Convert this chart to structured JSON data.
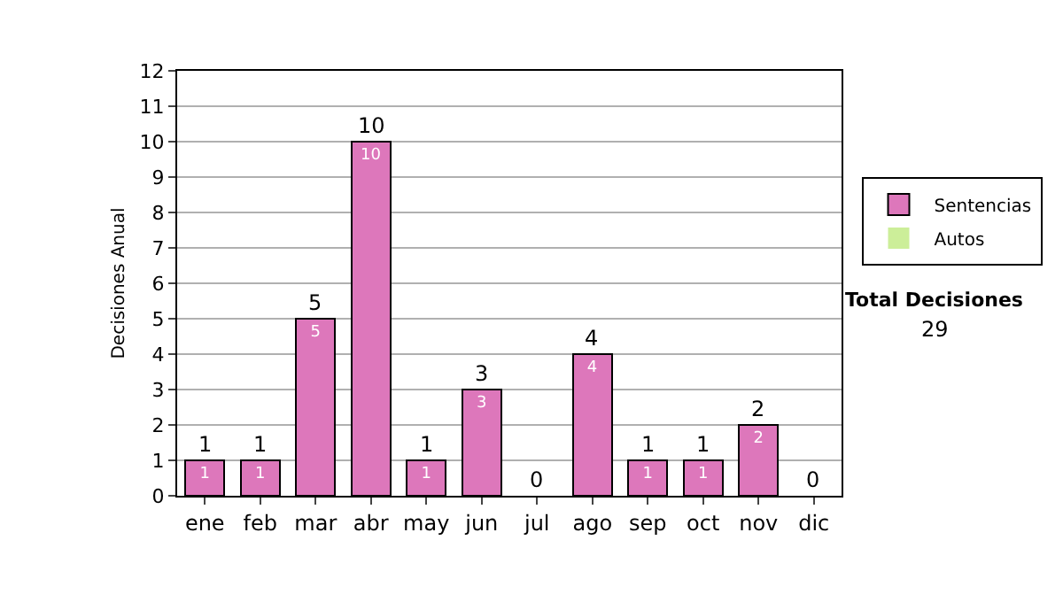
{
  "chart_data": {
    "type": "bar",
    "ylabel": "Decisiones Anual",
    "categories": [
      "ene",
      "feb",
      "mar",
      "abr",
      "may",
      "jun",
      "jul",
      "ago",
      "sep",
      "oct",
      "nov",
      "dic"
    ],
    "stacked": true,
    "series": [
      {
        "name": "Sentencias",
        "color": "#dd77bb",
        "values": [
          1,
          1,
          5,
          10,
          1,
          3,
          0,
          4,
          1,
          1,
          2,
          0
        ],
        "value_labels": [
          "1",
          "1",
          "5",
          "10",
          "1",
          "3",
          null,
          "4",
          "1",
          "1",
          "2",
          null
        ]
      },
      {
        "name": "Autos",
        "color": "#ccee99",
        "values": [
          0,
          0,
          0,
          0,
          0,
          0,
          0,
          0,
          0,
          0,
          0,
          0
        ]
      }
    ],
    "totals": [
      "1",
      "1",
      "5",
      "10",
      "1",
      "3",
      "0",
      "4",
      "1",
      "1",
      "2",
      "0"
    ],
    "ylim": [
      0,
      12
    ],
    "yticks": [
      0,
      1,
      2,
      3,
      4,
      5,
      6,
      7,
      8,
      9,
      10,
      11,
      12
    ],
    "grid": "y",
    "legend": "right",
    "annotations": [
      "Total Decisiones",
      "29"
    ]
  }
}
